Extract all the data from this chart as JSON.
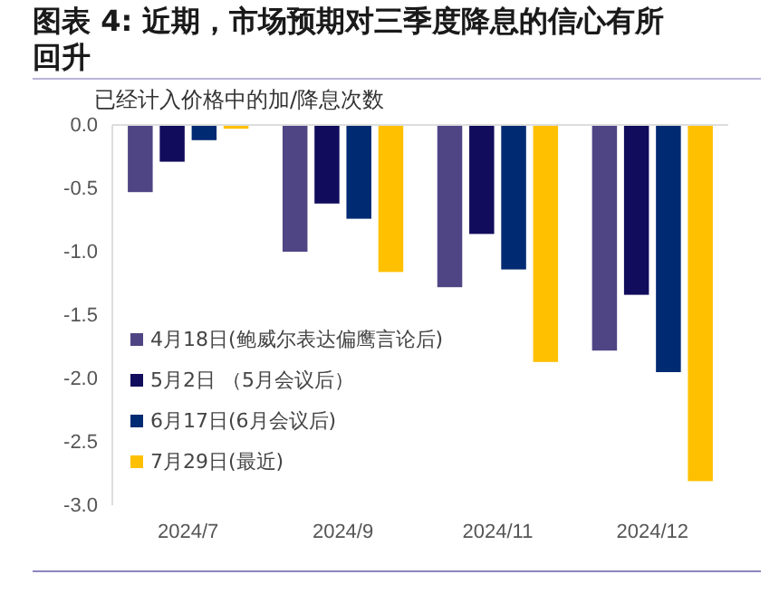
{
  "chart_data": {
    "type": "bar",
    "title": "图表 4: 近期，市场预期对三季度降息的信心有所回升",
    "ylabel": "已经计入价格中的加/降息次数",
    "categories": [
      "2024/7",
      "2024/9",
      "2024/11",
      "2024/12"
    ],
    "series": [
      {
        "name": "4月18日(鲍威尔表达偏鹰言论后)",
        "color": "#4f4585",
        "values": [
          -0.53,
          -1.0,
          -1.28,
          -1.78
        ]
      },
      {
        "name": "5月2日 （5月会议后）",
        "color": "#120c5c",
        "values": [
          -0.29,
          -0.62,
          -0.86,
          -1.34
        ]
      },
      {
        "name": "6月17日(6月会议后)",
        "color": "#002a72",
        "values": [
          -0.12,
          -0.74,
          -1.14,
          -1.95
        ]
      },
      {
        "name": "7月29日(最近)",
        "color": "#ffc000",
        "values": [
          -0.03,
          -1.16,
          -1.87,
          -2.81
        ]
      }
    ],
    "ylim": [
      -3.0,
      0
    ],
    "yticks": [
      {
        "value": 0,
        "label": "0.0"
      },
      -0.5,
      {
        "value": -1,
        "label": "-1.0"
      },
      -1.5,
      {
        "value": -2,
        "label": "-2.0"
      },
      -2.5,
      {
        "value": -3,
        "label": "-3.0"
      }
    ],
    "legend": "bottom left",
    "grid": false
  }
}
